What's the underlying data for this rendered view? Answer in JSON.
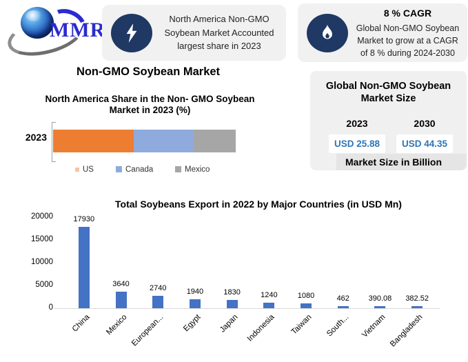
{
  "logo": {
    "text": "MMR"
  },
  "highlights": [
    {
      "icon": "lightning-icon",
      "text": "North America Non-GMO Soybean Market Accounted largest share in 2023"
    },
    {
      "icon": "flame-icon",
      "title": "8 % CAGR",
      "text": "Global Non-GMO Soybean Market to grow at a CAGR of 8 % during 2024-2030"
    }
  ],
  "page_title": "Non-GMO Soybean Market",
  "market_size_panel": {
    "title": "Global Non-GMO Soybean Market Size",
    "columns": [
      {
        "year": "2023",
        "value": "USD 25.88"
      },
      {
        "year": "2030",
        "value": "USD 44.35"
      }
    ],
    "footnote": "Market Size in Billion",
    "value_color": "#2e75b6"
  },
  "chart_data": [
    {
      "type": "bar",
      "subtype": "horizontal-stacked",
      "title": "North America Share in the Non- GMO Soybean Market in 2023 (%)",
      "categories": [
        "2023"
      ],
      "series": [
        {
          "name": "US",
          "color": "#ED7D31",
          "values": [
            44
          ]
        },
        {
          "name": "Canada",
          "color": "#8FAADC",
          "values": [
            33
          ]
        },
        {
          "name": "Mexico",
          "color": "#A6A6A6",
          "values": [
            23
          ]
        }
      ],
      "legend_position": "bottom"
    },
    {
      "type": "bar",
      "title": "Total Soybeans Export in 2022 by Major Countries (in USD Mn)",
      "categories": [
        "China",
        "Mexico",
        "European...",
        "Egypt",
        "Japan",
        "Indonesia",
        "Taiwan",
        "South...",
        "Vietnam",
        "Bangladesh"
      ],
      "values": [
        17930,
        3640,
        2740,
        1940,
        1830,
        1240,
        1080,
        462,
        390.08,
        382.52
      ],
      "labels": [
        "17930",
        "3640",
        "2740",
        "1940",
        "1830",
        "1240",
        "1080",
        "462",
        "390.08",
        "382.52"
      ],
      "bar_color": "#4472C4",
      "ylim": [
        0,
        20000
      ],
      "yticks": [
        0,
        5000,
        10000,
        15000,
        20000
      ],
      "grid": false,
      "xlabel_rotation": -45
    }
  ]
}
